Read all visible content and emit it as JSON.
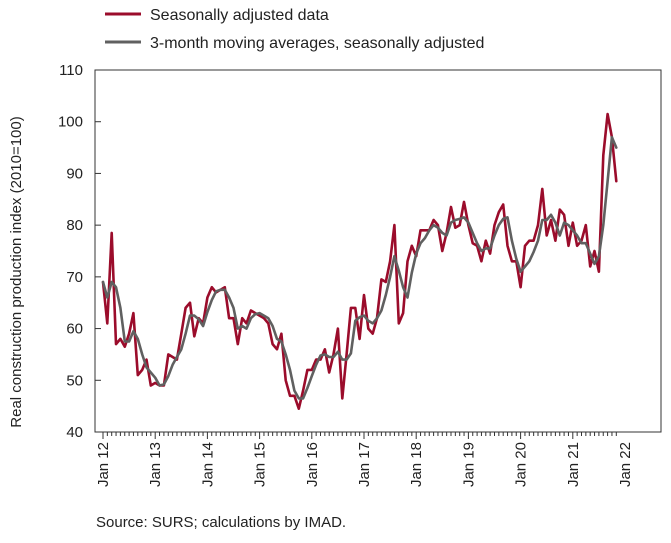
{
  "chart_data": {
    "type": "line",
    "title": "",
    "ylabel": "Real construction production index (2010=100)",
    "xlabel": "",
    "ylim": [
      40,
      110
    ],
    "yticks": [
      40,
      50,
      60,
      70,
      80,
      90,
      100,
      110
    ],
    "grid": false,
    "legend_position": "top-left",
    "x_tick_labels": [
      "Jan 12",
      "Jan 13",
      "Jan 14",
      "Jan 15",
      "Jan 16",
      "Jan 17",
      "Jan 18",
      "Jan 19",
      "Jan 20",
      "Jan 21",
      "Jan 22"
    ],
    "x_start": "Jan 12",
    "series": [
      {
        "name": "Seasonally adjusted data",
        "color": "#9b0c2b",
        "values": [
          69,
          61,
          78.5,
          57,
          58,
          56.5,
          59,
          63,
          51,
          52,
          54,
          49,
          49.5,
          49,
          49,
          55,
          54.5,
          54,
          59,
          64,
          65,
          58.5,
          62,
          61,
          66,
          68,
          67,
          67.5,
          68,
          62,
          62,
          57,
          62,
          61,
          63.5,
          63,
          62.5,
          62,
          61,
          57,
          56,
          59,
          50,
          47,
          47,
          44.5,
          48,
          52,
          52,
          54,
          54,
          56,
          51.5,
          55,
          60,
          46.5,
          55,
          64,
          64,
          58,
          66.5,
          60,
          59,
          62,
          69.5,
          69,
          73,
          80,
          61,
          63,
          73,
          76,
          74,
          79,
          79,
          79,
          81,
          80,
          75,
          78.5,
          83.5,
          79.5,
          80,
          84.5,
          80,
          76.5,
          76,
          73,
          77,
          74.5,
          80,
          82.5,
          84,
          76,
          73,
          73,
          68,
          76,
          77,
          77,
          80,
          87,
          78,
          81,
          77,
          83,
          82,
          76,
          80.5,
          76,
          77,
          80,
          72,
          75,
          71,
          93.5,
          101.5,
          97,
          88.5
        ]
      },
      {
        "name": "3-month moving averages, seasonally adjusted",
        "color": "#606060",
        "values": [
          69,
          66,
          69,
          68,
          64,
          57.5,
          57.5,
          59.5,
          58,
          55,
          52.5,
          51.5,
          50.5,
          49,
          49.2,
          50.8,
          53,
          54.5,
          56,
          59,
          62.5,
          62.5,
          61.8,
          60.5,
          63.2,
          65.5,
          67.2,
          67.5,
          67.5,
          66,
          64,
          60,
          60.5,
          60,
          62,
          62.8,
          63,
          62.5,
          62,
          60.5,
          58,
          57.5,
          55,
          52,
          48,
          46.5,
          46.5,
          48.5,
          50.8,
          53,
          54.8,
          55,
          54.5,
          54.5,
          55.5,
          54,
          54,
          55.2,
          61.5,
          62.2,
          62.5,
          61.5,
          61,
          62,
          63.5,
          66.5,
          70,
          74,
          71.2,
          68,
          66,
          70.8,
          74.5,
          76.5,
          77.5,
          79,
          80,
          79.5,
          78.5,
          78,
          80.5,
          81,
          81.2,
          81.5,
          80.5,
          78.5,
          76.5,
          75,
          75.5,
          75.5,
          78,
          80,
          81.2,
          81.5,
          77,
          73.5,
          71,
          72,
          73,
          74.8,
          77,
          81,
          81,
          82,
          80.5,
          78,
          80.5,
          80,
          79,
          78,
          76.5,
          76.5,
          74.5,
          72.5,
          74,
          80,
          88.5,
          97,
          95
        ]
      }
    ]
  }
}
